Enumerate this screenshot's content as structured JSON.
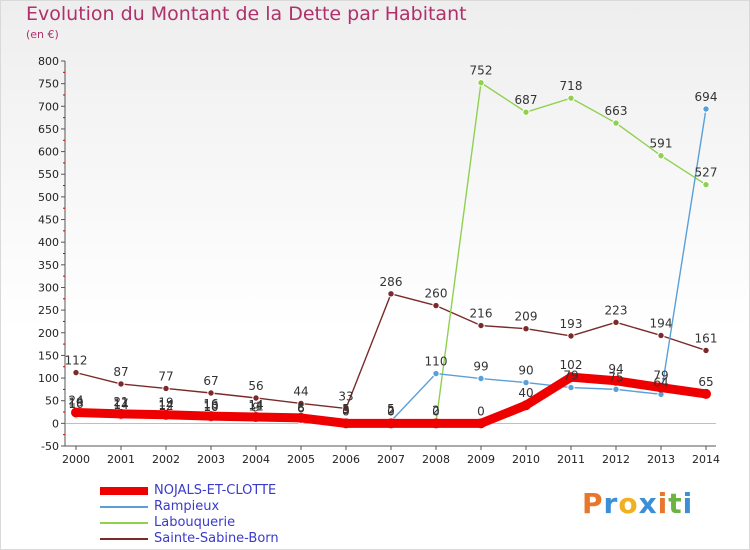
{
  "title": "Evolution du Montant de la Dette par Habitant",
  "unit": "(en €)",
  "logo": "Proxiti",
  "chart_data": {
    "type": "line",
    "x": [
      "2000",
      "2001",
      "2002",
      "2003",
      "2004",
      "2005",
      "2006",
      "2007",
      "2008",
      "2009",
      "2010",
      "2011",
      "2012",
      "2013",
      "2014"
    ],
    "ylim": [
      -50,
      800
    ],
    "yticks": [
      "-50",
      "0",
      "50",
      "100",
      "150",
      "200",
      "250",
      "300",
      "350",
      "400",
      "450",
      "500",
      "550",
      "600",
      "650",
      "700",
      "750",
      "800"
    ],
    "grid": false,
    "legend_placement": "bottom-left",
    "series": [
      {
        "name": "NOJALS-ET-CLOTTE",
        "color": "#ee0000",
        "values": [
          24,
          21,
          19,
          16,
          14,
          12,
          0,
          0,
          0,
          0,
          40,
          102,
          94,
          79,
          65
        ],
        "labels": [
          "24",
          "21",
          "19",
          "16",
          "14",
          "",
          "0",
          "0",
          "0",
          "0",
          "40",
          "102",
          "94",
          "79",
          "65"
        ]
      },
      {
        "name": "Rampieux",
        "color": "#5aa0d8",
        "values": [
          19,
          17,
          14,
          13,
          11,
          8,
          5,
          5,
          110,
          99,
          90,
          79,
          75,
          64,
          694
        ],
        "labels": [
          "19",
          "17",
          "14",
          "13",
          "11",
          "8",
          "5",
          "5",
          "110",
          "99",
          "90",
          "79",
          "75",
          "64",
          "694"
        ]
      },
      {
        "name": "Labouquerie",
        "color": "#8fd14f",
        "values": [
          16,
          14,
          12,
          10,
          9,
          6,
          3,
          2,
          2,
          752,
          687,
          718,
          663,
          591,
          527
        ],
        "labels": [
          "16",
          "14",
          "12",
          "10",
          "9",
          "6",
          "3",
          "2",
          "2",
          "752",
          "687",
          "718",
          "663",
          "591",
          "527"
        ]
      },
      {
        "name": "Sainte-Sabine-Born",
        "color": "#7a2a2a",
        "values": [
          112,
          87,
          77,
          67,
          56,
          44,
          33,
          286,
          260,
          216,
          209,
          193,
          223,
          194,
          161
        ],
        "labels": [
          "112",
          "87",
          "77",
          "67",
          "56",
          "44",
          "33",
          "286",
          "260",
          "216",
          "209",
          "193",
          "223",
          "194",
          "161"
        ]
      }
    ]
  }
}
